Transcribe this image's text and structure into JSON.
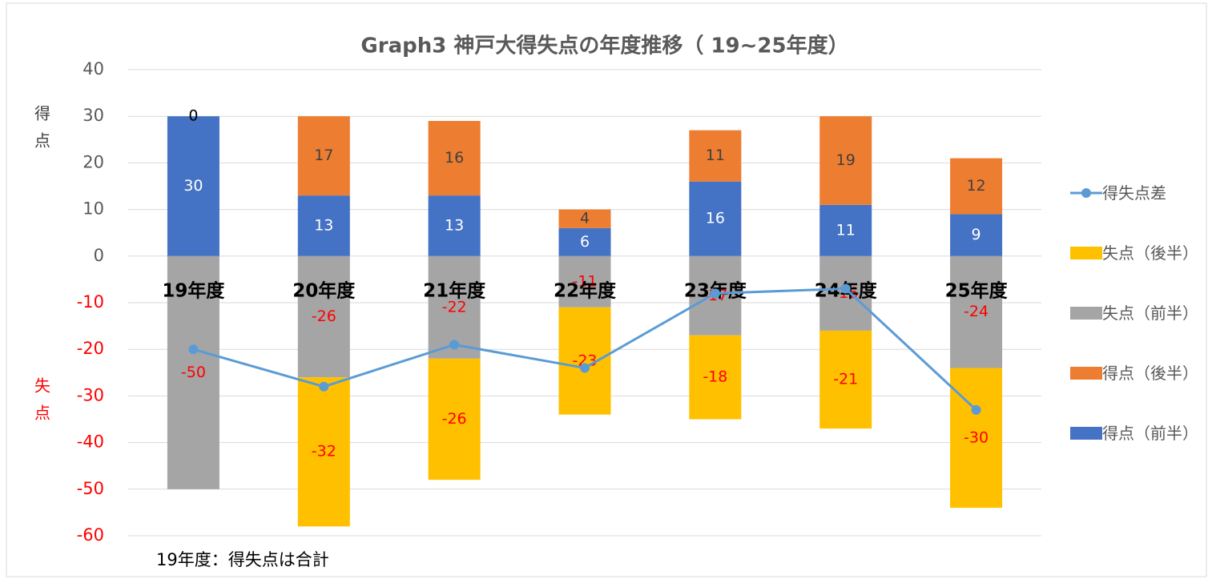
{
  "chart_data": {
    "type": "bar",
    "title": "Graph3  神戸大得失点の年度推移（ 19~25年度）",
    "y_label_top": "得点",
    "y_label_bottom": "失点",
    "note": "19年度：得失点は合計",
    "categories": [
      "19年度",
      "20年度",
      "21年度",
      "22年度",
      "23年度",
      "24年度",
      "25年度"
    ],
    "series": [
      {
        "name": "得点（前半）",
        "color": "#4472c4",
        "stack": "pos",
        "values": [
          30,
          13,
          13,
          6,
          16,
          11,
          9
        ]
      },
      {
        "name": "得点（後半）",
        "color": "#ed7d31",
        "stack": "pos",
        "values": [
          0,
          17,
          16,
          4,
          11,
          19,
          12
        ]
      },
      {
        "name": "失点（前半）",
        "color": "#a5a5a5",
        "stack": "neg",
        "values": [
          -50,
          -26,
          -22,
          -11,
          -17,
          -16,
          -24
        ]
      },
      {
        "name": "失点（後半）",
        "color": "#ffc000",
        "stack": "neg",
        "values": [
          null,
          -32,
          -26,
          -23,
          -18,
          -21,
          -30
        ]
      },
      {
        "name": "得失点差",
        "color": "#5b9bd5",
        "type": "line",
        "values": [
          -20,
          -28,
          -19,
          -24,
          -8,
          -7,
          -33
        ]
      }
    ],
    "ylim": [
      -60,
      40
    ],
    "yticks": [
      -60,
      -50,
      -40,
      -30,
      -20,
      -10,
      0,
      10,
      20,
      30,
      40
    ],
    "grid": true,
    "legend": "right"
  }
}
